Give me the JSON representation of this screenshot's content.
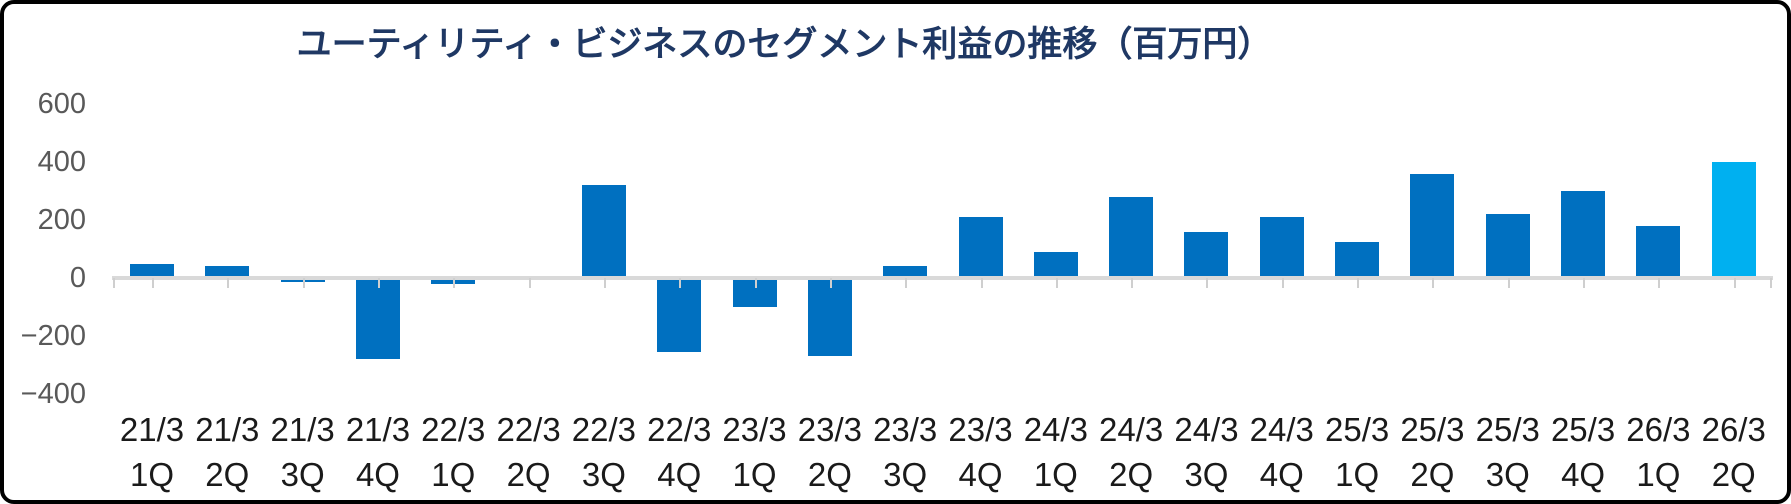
{
  "chart_data": {
    "type": "bar",
    "title": "ユーティリティ・ビジネスのセグメント利益の推移（百万円）",
    "categories": [
      "21/3 1Q",
      "21/3 2Q",
      "21/3 3Q",
      "21/3 4Q",
      "22/3 1Q",
      "22/3 2Q",
      "22/3 3Q",
      "22/3 4Q",
      "23/3 1Q",
      "23/3 2Q",
      "23/3 3Q",
      "23/3 4Q",
      "24/3 1Q",
      "24/3 2Q",
      "24/3 3Q",
      "24/3 4Q",
      "25/3 1Q",
      "25/3 2Q",
      "25/3 3Q",
      "25/3 4Q",
      "26/3 1Q",
      "26/3 2Q"
    ],
    "values": [
      50,
      40,
      -15,
      -280,
      -20,
      0,
      320,
      -255,
      -100,
      -270,
      40,
      210,
      90,
      280,
      160,
      210,
      125,
      360,
      220,
      300,
      180,
      400
    ],
    "ylim": [
      -400,
      600
    ],
    "y_ticks": [
      600,
      400,
      200,
      0,
      -200,
      -400
    ],
    "xlabel": "",
    "ylabel": "",
    "grid": false,
    "legend": "none",
    "highlight_index": 21,
    "colors": {
      "bar": "#0070C0",
      "highlight_bar": "#00B0F0",
      "title": "#1F3864",
      "y_axis_labels": "#595959",
      "x_axis_labels": "#1A1A1A",
      "axis_line": "#D9D9D9",
      "tick_marks": "#CFCFCF"
    }
  }
}
